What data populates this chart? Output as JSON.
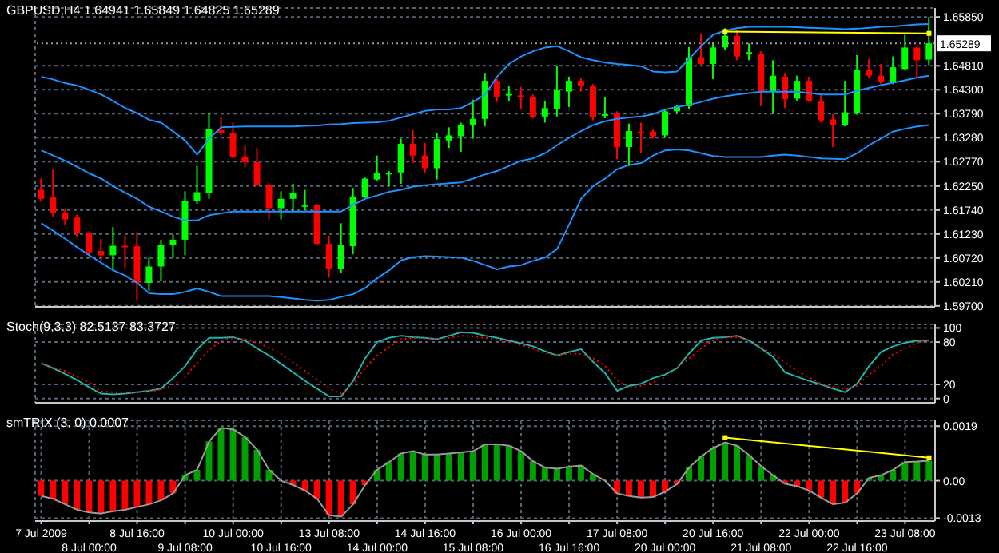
{
  "chart_data": [
    {
      "type": "candlestick",
      "title": "GBPUSD,H4 1.64941 1.65849 1.64825 1.65289",
      "tick_labels": "y",
      "grid": true,
      "categories": [
        null,
        null,
        null,
        null,
        null,
        null,
        null,
        null,
        null,
        null,
        null,
        null,
        null,
        null,
        null,
        null,
        null,
        null,
        null,
        null,
        null,
        null,
        null,
        null,
        null,
        null,
        null,
        null,
        null,
        null,
        null,
        null,
        null,
        null,
        null,
        null,
        null,
        null,
        null,
        null,
        null,
        null,
        null,
        null,
        null,
        null,
        null,
        null,
        null,
        null,
        null,
        null,
        null,
        null,
        null,
        null,
        null,
        null,
        null,
        null,
        null,
        null,
        null,
        null,
        null,
        null,
        null,
        null,
        null,
        null,
        null,
        null,
        null,
        null,
        null
      ],
      "ohlc": [
        [
          1.6217,
          1.6241,
          1.6192,
          1.6198
        ],
        [
          1.6201,
          1.626,
          1.616,
          1.6167
        ],
        [
          1.6169,
          1.6176,
          1.6143,
          1.6154
        ],
        [
          1.6158,
          1.6165,
          1.6116,
          1.6124
        ],
        [
          1.6125,
          1.6127,
          1.6078,
          1.6084
        ],
        [
          1.6087,
          1.6113,
          1.6067,
          1.6078
        ],
        [
          1.6078,
          1.6138,
          1.6046,
          1.6098
        ],
        [
          1.6098,
          1.612,
          1.6051,
          1.6095
        ],
        [
          1.6097,
          1.6127,
          1.5981,
          1.6019
        ],
        [
          1.6019,
          1.6073,
          1.6002,
          1.6054
        ],
        [
          1.6054,
          1.6111,
          1.6022,
          1.61
        ],
        [
          1.61,
          1.6122,
          1.6073,
          1.6111
        ],
        [
          1.6111,
          1.6214,
          1.6078,
          1.6194
        ],
        [
          1.6194,
          1.6268,
          1.6187,
          1.6212
        ],
        [
          1.6211,
          1.638,
          1.6198,
          1.6346
        ],
        [
          1.6344,
          1.6371,
          1.6333,
          1.6337
        ],
        [
          1.6337,
          1.636,
          1.6284,
          1.6287
        ],
        [
          1.6288,
          1.6312,
          1.6265,
          1.6276
        ],
        [
          1.6276,
          1.6306,
          1.6225,
          1.6228
        ],
        [
          1.6228,
          1.623,
          1.6154,
          1.6178
        ],
        [
          1.6178,
          1.6214,
          1.6154,
          1.6198
        ],
        [
          1.6198,
          1.623,
          1.6171,
          1.6211
        ],
        [
          1.6181,
          1.6217,
          1.6174,
          1.6185
        ],
        [
          1.6185,
          1.6187,
          1.61,
          1.6102
        ],
        [
          1.6102,
          1.612,
          1.603,
          1.6048
        ],
        [
          1.6048,
          1.6146,
          1.604,
          1.61
        ],
        [
          1.6097,
          1.6221,
          1.608,
          1.6203
        ],
        [
          1.6201,
          1.6243,
          1.6198,
          1.6241
        ],
        [
          1.6239,
          1.629,
          1.6236,
          1.6252
        ],
        [
          1.6251,
          1.6257,
          1.6225,
          1.6253
        ],
        [
          1.6254,
          1.6326,
          1.623,
          1.6315
        ],
        [
          1.6315,
          1.6344,
          1.6274,
          1.629
        ],
        [
          1.629,
          1.6317,
          1.6254,
          1.6263
        ],
        [
          1.6263,
          1.6337,
          1.6239,
          1.6325
        ],
        [
          1.6322,
          1.635,
          1.6306,
          1.6333
        ],
        [
          1.6331,
          1.636,
          1.6298,
          1.6356
        ],
        [
          1.6354,
          1.6409,
          1.6326,
          1.6368
        ],
        [
          1.6368,
          1.6466,
          1.6352,
          1.6449
        ],
        [
          1.6449,
          1.6453,
          1.6404,
          1.6415
        ],
        [
          1.6419,
          1.6439,
          1.6406,
          1.6421
        ],
        [
          1.6418,
          1.6436,
          1.6388,
          1.6415
        ],
        [
          1.6415,
          1.642,
          1.6369,
          1.6373
        ],
        [
          1.6373,
          1.6406,
          1.636,
          1.6391
        ],
        [
          1.6388,
          1.6482,
          1.6373,
          1.6429
        ],
        [
          1.6426,
          1.6458,
          1.6393,
          1.6449
        ],
        [
          1.6449,
          1.6456,
          1.6426,
          1.6439
        ],
        [
          1.6439,
          1.6442,
          1.6365,
          1.6371
        ],
        [
          1.6376,
          1.6415,
          1.6369,
          1.6378
        ],
        [
          1.6379,
          1.6384,
          1.6282,
          1.6308
        ],
        [
          1.6308,
          1.6358,
          1.6268,
          1.6342
        ],
        [
          1.6341,
          1.636,
          1.6295,
          1.6339
        ],
        [
          1.6341,
          1.6345,
          1.6326,
          1.6331
        ],
        [
          1.6333,
          1.6389,
          1.6328,
          1.6384
        ],
        [
          1.6384,
          1.6398,
          1.638,
          1.6395
        ],
        [
          1.6395,
          1.6521,
          1.6388,
          1.6499
        ],
        [
          1.6499,
          1.655,
          1.6483,
          1.6485
        ],
        [
          1.6485,
          1.6532,
          1.6453,
          1.652
        ],
        [
          1.652,
          1.6561,
          1.6514,
          1.6545
        ],
        [
          1.6545,
          1.6556,
          1.6493,
          1.6501
        ],
        [
          1.6505,
          1.6529,
          1.6493,
          1.651
        ],
        [
          1.6507,
          1.6512,
          1.6395,
          1.6426
        ],
        [
          1.6426,
          1.6493,
          1.638,
          1.646
        ],
        [
          1.6458,
          1.6466,
          1.6391,
          1.641
        ],
        [
          1.6411,
          1.646,
          1.6406,
          1.6449
        ],
        [
          1.6449,
          1.6458,
          1.6404,
          1.6406
        ],
        [
          1.6406,
          1.642,
          1.636,
          1.6365
        ],
        [
          1.6367,
          1.6378,
          1.6308,
          1.6355
        ],
        [
          1.6355,
          1.6449,
          1.6352,
          1.6382
        ],
        [
          1.638,
          1.6504,
          1.6377,
          1.6472
        ],
        [
          1.6472,
          1.6496,
          1.6456,
          1.646
        ],
        [
          1.646,
          1.6485,
          1.6442,
          1.6446
        ],
        [
          1.6447,
          1.6501,
          1.6442,
          1.6478
        ],
        [
          1.6474,
          1.6547,
          1.6471,
          1.652
        ],
        [
          1.652,
          1.6523,
          1.6458,
          1.6493
        ],
        [
          1.64941,
          1.65849,
          1.64825,
          1.65289
        ]
      ],
      "colors": [
        "#ff0000",
        "#ff0000",
        "#ff0000",
        "#ff0000",
        "#ff0000",
        "#ff0000",
        "#00ff00",
        "#ff0000",
        "#ff0000",
        "#00ff00",
        "#00ff00",
        "#00ff00",
        "#00ff00",
        "#00ff00",
        "#00ff00",
        "#ff0000",
        "#ff0000",
        "#ff0000",
        "#ff0000",
        "#ff0000",
        "#00ff00",
        "#00ff00",
        "#00ff00",
        "#ff0000",
        "#ff0000",
        "#00ff00",
        "#00ff00",
        "#00ff00",
        "#00ff00",
        "#00ff00",
        "#00ff00",
        "#ff0000",
        "#ff0000",
        "#00ff00",
        "#00ff00",
        "#00ff00",
        "#00ff00",
        "#00ff00",
        "#ff0000",
        "#00ff00",
        "#ff0000",
        "#ff0000",
        "#00ff00",
        "#00ff00",
        "#00ff00",
        "#ff0000",
        "#ff0000",
        "#00ff00",
        "#ff0000",
        "#00ff00",
        "#ff0000",
        "#ff0000",
        "#00ff00",
        "#00ff00",
        "#00ff00",
        "#ff0000",
        "#00ff00",
        "#00ff00",
        "#ff0000",
        "#00ff00",
        "#ff0000",
        "#00ff00",
        "#ff0000",
        "#00ff00",
        "#ff0000",
        "#ff0000",
        "#ff0000",
        "#00ff00",
        "#00ff00",
        "#ff0000",
        "#ff0000",
        "#00ff00",
        "#00ff00",
        "#ff0000",
        "#00ff00"
      ],
      "series": [
        {
          "type": "line",
          "color": "#1e90ff",
          "values": [
            1.6458,
            1.6452,
            1.6444,
            1.6439,
            1.643,
            1.642,
            1.6406,
            1.6391,
            1.638,
            1.6366,
            1.636,
            1.6341,
            1.6322,
            1.6292,
            1.6326,
            1.635,
            1.6351,
            1.6352,
            1.6352,
            1.6352,
            1.6352,
            1.6352,
            1.6353,
            1.6354,
            1.6356,
            1.6357,
            1.6359,
            1.636,
            1.6361,
            1.6364,
            1.6371,
            1.6378,
            1.6385,
            1.6388,
            1.6388,
            1.6391,
            1.6404,
            1.642,
            1.6458,
            1.6485,
            1.6501,
            1.6512,
            1.652,
            1.6523,
            1.6512,
            1.6499,
            1.6493,
            1.6488,
            1.6485,
            1.6483,
            1.648,
            1.6469,
            1.6467,
            1.6469,
            1.6496,
            1.6523,
            1.6547,
            1.6556,
            1.6561,
            1.6564,
            1.6564,
            1.6564,
            1.6564,
            1.6563,
            1.6562,
            1.6561,
            1.656,
            1.6559,
            1.656,
            1.6562,
            1.6564,
            1.6565,
            1.6567,
            1.6569,
            1.657
          ]
        },
        {
          "type": "line",
          "color": "#1e90ff",
          "values": [
            1.6301,
            1.629,
            1.6279,
            1.6266,
            1.6252,
            1.6241,
            1.6225,
            1.6211,
            1.6198,
            1.6181,
            1.6171,
            1.616,
            1.6152,
            1.6152,
            1.6163,
            1.6167,
            1.6171,
            1.6171,
            1.6171,
            1.6171,
            1.6171,
            1.6171,
            1.6171,
            1.6171,
            1.6171,
            1.6171,
            1.6185,
            1.6198,
            1.6205,
            1.6213,
            1.6217,
            1.6224,
            1.6227,
            1.6229,
            1.6231,
            1.6233,
            1.6241,
            1.625,
            1.6257,
            1.6268,
            1.6279,
            1.6284,
            1.6295,
            1.6312,
            1.6328,
            1.6342,
            1.6355,
            1.6363,
            1.6368,
            1.6371,
            1.6373,
            1.6378,
            1.6388,
            1.6393,
            1.6398,
            1.6404,
            1.6411,
            1.6416,
            1.642,
            1.6423,
            1.6426,
            1.6426,
            1.6426,
            1.6426,
            1.6423,
            1.642,
            1.642,
            1.642,
            1.6428,
            1.6434,
            1.644,
            1.6445,
            1.645,
            1.6456,
            1.646
          ]
        },
        {
          "type": "line",
          "color": "#1e90ff",
          "values": [
            1.6146,
            1.613,
            1.6113,
            1.6095,
            1.6078,
            1.6062,
            1.6046,
            1.6035,
            1.6019,
            1.5997,
            1.5995,
            1.5995,
            1.6,
            1.6007,
            1.6,
            1.5991,
            1.5991,
            1.5991,
            1.5991,
            1.5991,
            1.5989,
            1.5986,
            1.5983,
            1.5981,
            1.5983,
            1.5989,
            1.5995,
            1.6008,
            1.6029,
            1.6046,
            1.6067,
            1.6074,
            1.6076,
            1.6075,
            1.6074,
            1.6073,
            1.6066,
            1.6057,
            1.6048,
            1.6054,
            1.6057,
            1.6066,
            1.6073,
            1.6091,
            1.6143,
            1.6198,
            1.6225,
            1.6241,
            1.6261,
            1.627,
            1.6274,
            1.629,
            1.6301,
            1.6303,
            1.6301,
            1.6295,
            1.6289,
            1.6287,
            1.6287,
            1.6287,
            1.6287,
            1.629,
            1.6292,
            1.629,
            1.6287,
            1.6284,
            1.6283,
            1.6282,
            1.6295,
            1.6312,
            1.6326,
            1.6341,
            1.6347,
            1.6352,
            1.6355
          ]
        },
        {
          "type": "line",
          "color": "#ffff00",
          "marker": "square",
          "values": [
            null,
            null,
            null,
            null,
            null,
            null,
            null,
            null,
            null,
            null,
            null,
            null,
            null,
            null,
            null,
            null,
            null,
            null,
            null,
            null,
            null,
            null,
            null,
            null,
            null,
            null,
            null,
            null,
            null,
            null,
            null,
            null,
            null,
            null,
            null,
            null,
            null,
            null,
            null,
            null,
            null,
            null,
            null,
            null,
            null,
            null,
            null,
            null,
            null,
            null,
            null,
            null,
            null,
            null,
            null,
            null,
            null,
            1.6554,
            null,
            null,
            null,
            null,
            null,
            null,
            null,
            null,
            null,
            null,
            null,
            null,
            null,
            null,
            null,
            null,
            1.655
          ]
        }
      ],
      "ylim": [
        1.5968,
        1.6604
      ],
      "yticks": [
        {
          "value": 1.597,
          "label": "1.59700"
        },
        {
          "value": 1.6021,
          "label": "1.60210"
        },
        {
          "value": 1.6072,
          "label": "1.60720"
        },
        {
          "value": 1.6123,
          "label": "1.61230"
        },
        {
          "value": 1.6174,
          "label": "1.61740"
        },
        {
          "value": 1.6225,
          "label": "1.62250"
        },
        {
          "value": 1.6277,
          "label": "1.62770"
        },
        {
          "value": 1.6328,
          "label": "1.63280"
        },
        {
          "value": 1.6379,
          "label": "1.63790"
        },
        {
          "value": 1.643,
          "label": "1.64300"
        },
        {
          "value": 1.6481,
          "label": "1.64810"
        },
        {
          "value": 1.6585,
          "label": "1.65850"
        }
      ],
      "ref_lines": [
        {
          "axis": "y",
          "value": 1.65289,
          "label": "1.65289",
          "color": "#9a9a9a"
        }
      ]
    },
    {
      "type": "line",
      "title": "Stoch(9,3,3) 82.5137 83.3727",
      "tick_labels": "y",
      "grid": true,
      "categories": [
        null,
        null,
        null,
        null,
        null,
        null,
        null,
        null,
        null,
        null,
        null,
        null,
        null,
        null,
        null,
        null,
        null,
        null,
        null,
        null,
        null,
        null,
        null,
        null,
        null,
        null,
        null,
        null,
        null,
        null,
        null,
        null,
        null,
        null,
        null,
        null,
        null,
        null,
        null,
        null,
        null,
        null,
        null,
        null,
        null,
        null,
        null,
        null,
        null,
        null,
        null,
        null,
        null,
        null,
        null,
        null,
        null,
        null,
        null,
        null,
        null,
        null,
        null,
        null,
        null,
        null,
        null,
        null,
        null,
        null,
        null,
        null,
        null,
        null,
        null
      ],
      "series": [
        {
          "color": "#20b2aa",
          "line_style": "solid",
          "values": [
            50,
            43,
            35,
            26,
            16,
            7,
            6,
            7,
            9,
            11,
            14,
            29,
            46,
            70,
            86,
            86,
            87,
            82,
            71,
            61,
            49,
            37,
            25,
            14,
            3,
            3,
            25,
            57,
            80,
            86,
            89,
            87,
            86,
            84,
            89,
            94,
            93,
            89,
            86,
            82,
            78,
            74,
            67,
            61,
            66,
            70,
            52,
            36,
            11,
            18,
            21,
            29,
            34,
            43,
            64,
            82,
            86,
            87,
            89,
            82,
            71,
            59,
            37,
            31,
            25,
            20,
            14,
            9,
            21,
            46,
            66,
            74,
            79,
            82,
            82
          ]
        },
        {
          "color": "#ff0000",
          "line_style": "dotted",
          "values": [
            50,
            44,
            39,
            31,
            23,
            10,
            9,
            9,
            9,
            10,
            13,
            19,
            30,
            51,
            69,
            82,
            86,
            84,
            79,
            72,
            63,
            51,
            39,
            27,
            14,
            7,
            21,
            43,
            61,
            73,
            84,
            86,
            85,
            84,
            86,
            89,
            88,
            86,
            83,
            80,
            76,
            71,
            64,
            61,
            64,
            63,
            57,
            46,
            26,
            16,
            18,
            23,
            30,
            43,
            57,
            71,
            83,
            86,
            87,
            84,
            73,
            63,
            51,
            39,
            30,
            21,
            16,
            13,
            18,
            34,
            46,
            63,
            71,
            79,
            83
          ]
        }
      ],
      "ylim": [
        -6,
        105
      ],
      "yticks": [
        0,
        20,
        80,
        100
      ]
    },
    {
      "type": "bar",
      "title": "smTRIX (3, 0) 0.0007",
      "grid": true,
      "categories": [
        "7 Jul 2009",
        null,
        null,
        null,
        "8 Jul 00:00",
        null,
        null,
        null,
        "8 Jul 16:00",
        null,
        null,
        null,
        "9 Jul 08:00",
        null,
        null,
        null,
        "10 Jul 00:00",
        null,
        null,
        null,
        "10 Jul 16:00",
        null,
        null,
        null,
        "13 Jul 08:00",
        null,
        null,
        null,
        "14 Jul 00:00",
        null,
        null,
        null,
        "14 Jul 16:00",
        null,
        null,
        null,
        "15 Jul 08:00",
        null,
        null,
        null,
        "16 Jul 00:00",
        null,
        null,
        null,
        "16 Jul 16:00",
        null,
        null,
        null,
        "17 Jul 08:00",
        null,
        null,
        null,
        "20 Jul 00:00",
        null,
        null,
        null,
        "20 Jul 16:00",
        null,
        null,
        null,
        "21 Jul 08:00",
        null,
        null,
        null,
        "22 Jul 00:00",
        null,
        null,
        null,
        "22 Jul 16:00",
        null,
        null,
        null,
        "23 Jul 08:00",
        null,
        null
      ],
      "series": [
        {
          "type": "bar",
          "colors": [
            "#ff0000",
            "#ff0000",
            "#ff0000",
            "#ff0000",
            "#ff0000",
            "#ff0000",
            "#ff0000",
            "#ff0000",
            "#ff0000",
            "#ff0000",
            "#ff0000",
            "#ff0000",
            "#00a000",
            "#00a000",
            "#00a000",
            "#00a000",
            "#00a000",
            "#00a000",
            "#00a000",
            "#00a000",
            "#00a000",
            "#ff0000",
            "#ff0000",
            "#ff0000",
            "#ff0000",
            "#ff0000",
            "#ff0000",
            "#ff0000",
            "#00a000",
            "#00a000",
            "#00a000",
            "#00a000",
            "#00a000",
            "#00a000",
            "#00a000",
            "#00a000",
            "#00a000",
            "#00a000",
            "#00a000",
            "#00a000",
            "#00a000",
            "#00a000",
            "#00a000",
            "#00a000",
            "#00a000",
            "#00a000",
            "#00a000",
            "#00a000",
            "#ff0000",
            "#ff0000",
            "#ff0000",
            "#ff0000",
            "#ff0000",
            "#ff0000",
            "#00a000",
            "#00a000",
            "#00a000",
            "#00a000",
            "#00a000",
            "#00a000",
            "#00a000",
            "#00a000",
            "#ff0000",
            "#ff0000",
            "#ff0000",
            "#ff0000",
            "#ff0000",
            "#ff0000",
            "#ff0000",
            "#00a000",
            "#00a000",
            "#00a000",
            "#00a000",
            "#00a000",
            "#00a000"
          ],
          "values": [
            -0.00053,
            -0.00063,
            -0.00082,
            -0.00101,
            -0.0011,
            -0.00114,
            -0.00106,
            -0.00101,
            -0.00091,
            -0.00082,
            -0.00068,
            -0.00044,
            0.00019,
            0.00038,
            0.00137,
            0.00184,
            0.00179,
            0.00152,
            0.00108,
            0.00038,
            0,
            -0.00015,
            -0.00034,
            -0.00063,
            -0.0012,
            -0.00125,
            -0.00082,
            -0.00015,
            0.00038,
            0.00065,
            0.00095,
            0.00103,
            0.00091,
            0.00091,
            0.00095,
            0.00099,
            0.00103,
            0.00127,
            0.00127,
            0.00122,
            0.00103,
            0.00068,
            0.00046,
            0.00042,
            0.00049,
            0.00053,
            0.00023,
            0,
            -0.00044,
            -0.00053,
            -0.00059,
            -0.00057,
            -0.00038,
            -0.00011,
            0.00046,
            0.00084,
            0.00114,
            0.00133,
            0.00122,
            0.00089,
            0.00051,
            0.00019,
            -0.00011,
            -0.00019,
            -0.00034,
            -0.00059,
            -0.00082,
            -0.00076,
            -0.00044,
            0.0001,
            0.00019,
            0.00038,
            0.00065,
            0.00067,
            0.0007
          ]
        },
        {
          "type": "line",
          "color": "#9a9a9a",
          "values": [
            -0.00053,
            -0.00063,
            -0.00082,
            -0.00101,
            -0.0011,
            -0.00114,
            -0.00106,
            -0.00101,
            -0.00091,
            -0.00082,
            -0.00068,
            -0.00044,
            0.00019,
            0.00038,
            0.00137,
            0.00184,
            0.00179,
            0.00152,
            0.00108,
            0.00038,
            0,
            -0.00015,
            -0.00034,
            -0.00063,
            -0.0012,
            -0.00125,
            -0.00082,
            -0.00015,
            0.00038,
            0.00065,
            0.00095,
            0.00103,
            0.00091,
            0.00091,
            0.00095,
            0.00099,
            0.00103,
            0.00127,
            0.00127,
            0.00122,
            0.00103,
            0.00068,
            0.00046,
            0.00042,
            0.00049,
            0.00053,
            0.00023,
            0,
            -0.00044,
            -0.00053,
            -0.00059,
            -0.00057,
            -0.00038,
            -0.00011,
            0.00046,
            0.00084,
            0.00114,
            0.00133,
            0.00122,
            0.00089,
            0.00051,
            0.00019,
            -0.00011,
            -0.00019,
            -0.00034,
            -0.00059,
            -0.00082,
            -0.00076,
            -0.00044,
            0.0001,
            0.00019,
            0.00038,
            0.00065,
            0.00067,
            0.0007
          ]
        },
        {
          "type": "line",
          "color": "#ffff00",
          "marker": "square",
          "values": [
            null,
            null,
            null,
            null,
            null,
            null,
            null,
            null,
            null,
            null,
            null,
            null,
            null,
            null,
            null,
            null,
            null,
            null,
            null,
            null,
            null,
            null,
            null,
            null,
            null,
            null,
            null,
            null,
            null,
            null,
            null,
            null,
            null,
            null,
            null,
            null,
            null,
            null,
            null,
            null,
            null,
            null,
            null,
            null,
            null,
            null,
            null,
            null,
            null,
            null,
            null,
            null,
            null,
            null,
            null,
            null,
            null,
            0.0015,
            null,
            null,
            null,
            null,
            null,
            null,
            null,
            null,
            null,
            null,
            null,
            null,
            null,
            null,
            null,
            null,
            0.0008
          ]
        }
      ],
      "ylim": [
        -0.0014,
        0.0021
      ],
      "yticks": [
        0.0019,
        {
          "value": 0,
          "label": "0.00"
        },
        -0.0013
      ]
    }
  ]
}
